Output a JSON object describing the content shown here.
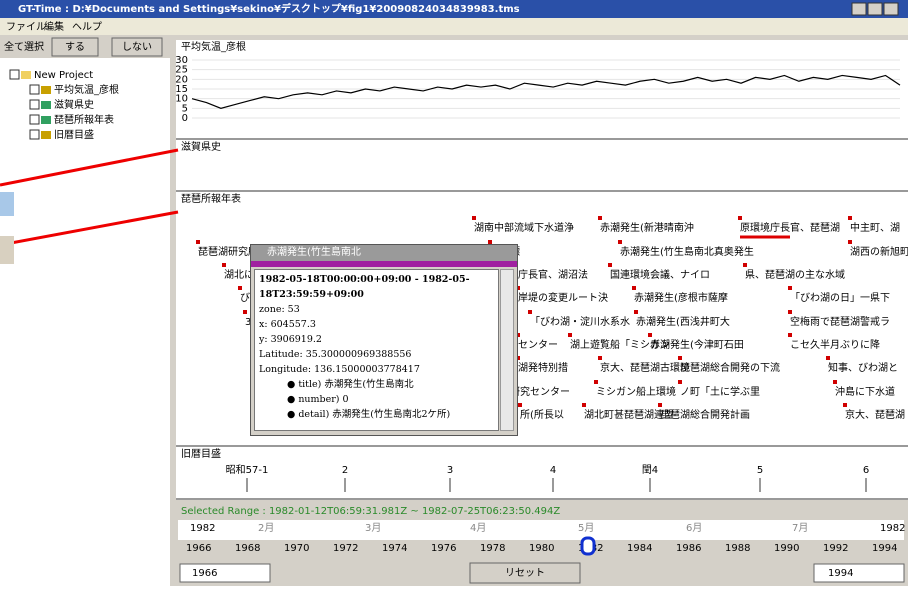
{
  "window": {
    "title": "GT-Time : D:¥Documents and Settings¥sekino¥デスクトップ¥fig1¥20090824034839983.tms"
  },
  "menu": [
    "ファイル",
    "編集",
    "ヘルプ"
  ],
  "sidebar": {
    "label": "全て選択",
    "buttons": [
      "する",
      "しない"
    ],
    "tree": [
      "New Project",
      "平均気温_彦根",
      "滋賀県史",
      "琵琶所報年表",
      "旧暦目盛"
    ]
  },
  "panels": [
    {
      "title": "平均気温_彦根",
      "chart": {
        "type": "line",
        "color": "#000000",
        "ylim": [
          0,
          30
        ],
        "yticks": [
          0,
          5,
          10,
          15,
          20,
          25,
          30
        ],
        "values": [
          10,
          8,
          5,
          7,
          9,
          11,
          10,
          12,
          13,
          12,
          14,
          13,
          15,
          14,
          16,
          15,
          14,
          16,
          15,
          17,
          16,
          17,
          15,
          18,
          17,
          16,
          18,
          17,
          19,
          18,
          17,
          19,
          20,
          18,
          19,
          21,
          19,
          20,
          18,
          21,
          20,
          22,
          19,
          21,
          20,
          22,
          21,
          20,
          22,
          17
        ]
      }
    },
    {
      "title": "滋賀県史"
    },
    {
      "title": "琵琶所報年表",
      "events": [
        "湖南中部流域下水道浄",
        "赤潮発生(新港晴南沖",
        "原環境庁長官、琵琶湖",
        "中主町、湖",
        "琵琶湖研究所",
        "を目標",
        "赤潮発生(竹生島南北真奥発生",
        "湖西の新旭町",
        "湖北に",
        "境庁長官、湖沼法",
        "国連環境会議、ナイロ",
        "県、琵琶湖の主な水域",
        "び",
        "岸堤の変更ルート決",
        "赤潮発生(彦根市薩摩",
        "「びわ湖の日」一県下",
        "3",
        "「びわ湖・淀川水系水",
        "赤潮発生(西浅井町大",
        "空梅雨で琵琶湖警戒ラ",
        "センター",
        "湖上遊覧船「ミシガン",
        "赤潮発生(今津町石田",
        "こセ久半月ぶりに降",
        "湖発特別措",
        "京大、琵琶湖古環境",
        "琵琶湖総合開発の下流",
        "知事、びわ湖と",
        "研究センター",
        "ミシガン船上環境",
        "ノ町「土に学ぶ里",
        "沖島に下水道",
        "所(所長以",
        "湖北町甚琵琶湖連盟",
        "琵琶湖総合開発計画",
        "京大、琵琶湖"
      ]
    },
    {
      "title": "旧暦目盛",
      "labels": [
        "昭和57-1",
        "2",
        "3",
        "4",
        "閏4",
        "5",
        "6"
      ]
    }
  ],
  "popup": {
    "title": "赤潮発生(竹生島南北",
    "period": "1982-05-18T00:00:00+09:00 - 1982-05-18T23:59:59+09:00",
    "lines": [
      "zone: 53",
      "x: 604557.3",
      "y: 3906919.2",
      "Latitude: 35.300000969388556",
      "Longitude: 136.15000003778417"
    ],
    "bullets": [
      "title) 赤潮発生(竹生島南北",
      "number) 0",
      "detail) 赤潮発生(竹生島南北2ケ所)"
    ]
  },
  "timeline": {
    "selected_range": "Selected Range : 1982-01-12T06:59:31.981Z ~ 1982-07-25T06:23:50.494Z",
    "months": [
      "1982",
      "2月",
      "3月",
      "4月",
      "5月",
      "6月",
      "7月",
      "1982"
    ],
    "years": [
      "1966",
      "1968",
      "1970",
      "1972",
      "1974",
      "1976",
      "1978",
      "1980",
      "1982",
      "1984",
      "1986",
      "1988",
      "1990",
      "1992",
      "1994"
    ],
    "start": "1966",
    "reset": "リセット",
    "end": "1994"
  }
}
